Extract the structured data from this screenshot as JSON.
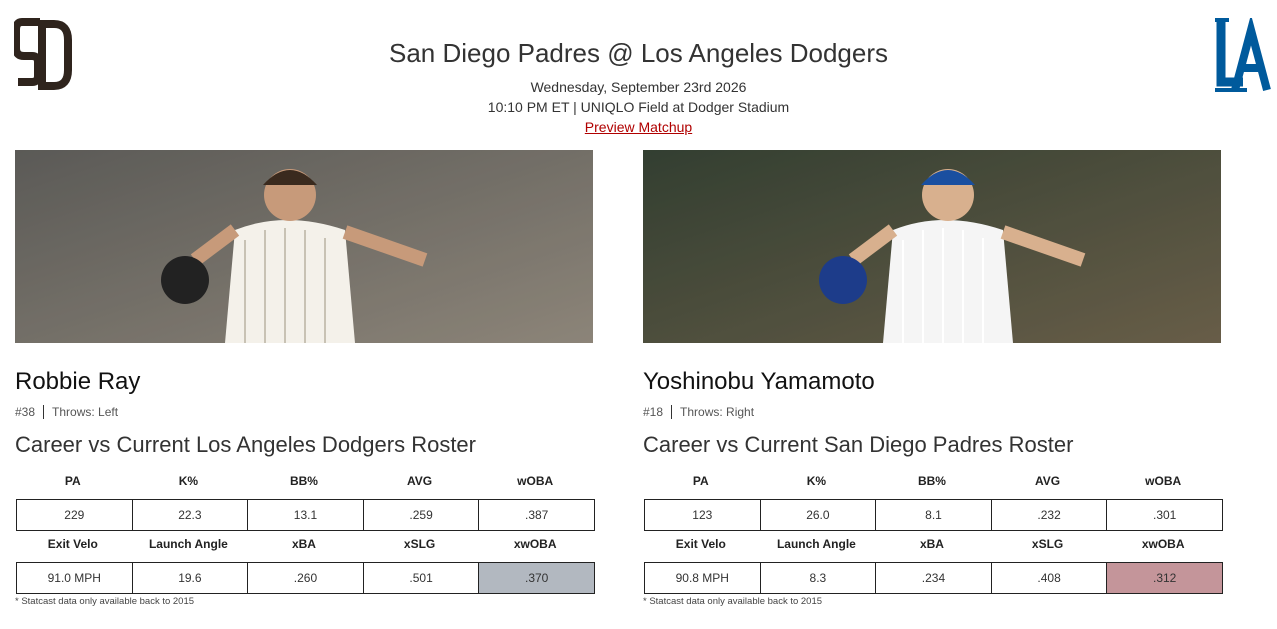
{
  "header": {
    "title": "San Diego Padres @ Los Angeles Dodgers",
    "date": "Wednesday, September 23rd 2026",
    "time_venue": "10:10 PM ET | UNIQLO Field at Dodger Stadium",
    "link": "Preview Matchup"
  },
  "pitchers": [
    {
      "name": "Robbie Ray",
      "number": "#38",
      "throws": "Throws: Left",
      "heading": "Career vs Current Los Angeles Dodgers Roster",
      "table": {
        "header1": [
          "PA",
          "K%",
          "BB%",
          "AVG",
          "wOBA"
        ],
        "row1": [
          "229",
          "22.3",
          "13.1",
          ".259",
          ".387"
        ],
        "header2": [
          "Exit Velo",
          "Launch Angle",
          "xBA",
          "xSLG",
          "xwOBA"
        ],
        "row2": [
          "91.0 MPH",
          "19.6",
          ".260",
          ".501",
          ".370"
        ],
        "highlight": {
          "column": 4,
          "color": "#b2b8c0"
        }
      },
      "footnote": "* Statcast data only available back to 2015"
    },
    {
      "name": "Yoshinobu Yamamoto",
      "number": "#18",
      "throws": "Throws: Right",
      "heading": "Career vs Current San Diego Padres Roster",
      "table": {
        "header1": [
          "PA",
          "K%",
          "BB%",
          "AVG",
          "wOBA"
        ],
        "row1": [
          "123",
          "26.0",
          "8.1",
          ".232",
          ".301"
        ],
        "header2": [
          "Exit Velo",
          "Launch Angle",
          "xBA",
          "xSLG",
          "xwOBA"
        ],
        "row2": [
          "90.8 MPH",
          "8.3",
          ".234",
          ".408",
          ".312"
        ],
        "highlight": {
          "column": 4,
          "color": "#c4959a"
        }
      },
      "footnote": "* Statcast data only available back to 2015"
    }
  ]
}
